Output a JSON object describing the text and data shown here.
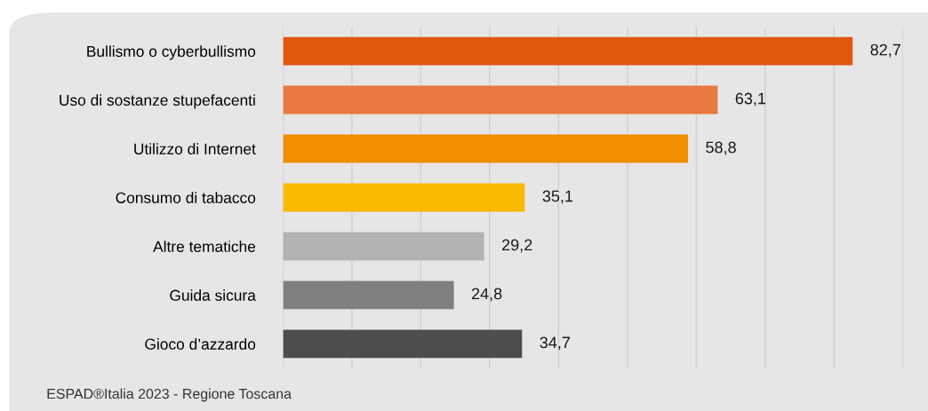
{
  "chart_data": {
    "type": "bar",
    "orientation": "horizontal",
    "categories": [
      "Bullismo o cyberbullismo",
      "Uso di sostanze stupefacenti",
      "Utilizzo di Internet",
      "Consumo di tabacco",
      "Altre tematiche",
      "Guida sicura",
      "Gioco d’azzardo"
    ],
    "values": [
      82.7,
      63.1,
      58.8,
      35.1,
      29.2,
      24.8,
      34.7
    ],
    "colors": [
      "#e0570c",
      "#e8793f",
      "#f08d00",
      "#f9b900",
      "#b3b3b3",
      "#808080",
      "#4d4d4d"
    ],
    "value_labels": [
      "82,7",
      "63,1",
      "58,8",
      "35,1",
      "29,2",
      "24,8",
      "34,7"
    ],
    "xlim": [
      0,
      90
    ],
    "xticks": [
      {
        "value": 0,
        "label": null
      },
      {
        "value": 10,
        "label": null
      },
      {
        "value": 20,
        "label": null
      },
      {
        "value": 30,
        "label": null
      },
      {
        "value": 40,
        "label": null
      },
      {
        "value": 50,
        "label": null
      },
      {
        "value": 60,
        "label": null
      },
      {
        "value": 70,
        "label": null
      },
      {
        "value": 80,
        "label": null
      },
      {
        "value": 90,
        "label": null
      }
    ],
    "grid": "x",
    "tick_labels": "y",
    "legend": false,
    "annotations": [
      "ESPAD®Italia 2023 - Regione Toscana"
    ]
  }
}
